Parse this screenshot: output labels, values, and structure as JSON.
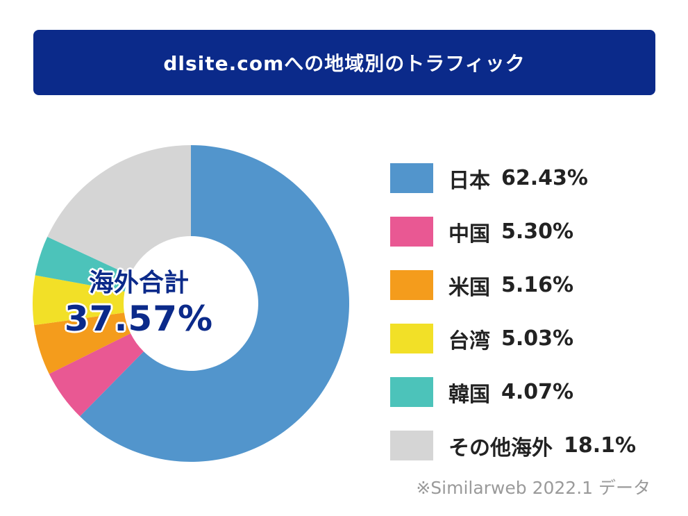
{
  "title": "dlsite.comへの地域別のトラフィック",
  "colors": {
    "title_bar": "#0b2a8a",
    "center_text": "#0b2a8a"
  },
  "center": {
    "label": "海外合計",
    "value": "37.57%"
  },
  "source_note": "※Similarweb 2022.1 データ",
  "chart_data": {
    "type": "pie",
    "donut": true,
    "title": "dlsite.comへの地域別のトラフィック",
    "legend_position": "right",
    "series": [
      {
        "name": "日本",
        "value": 62.43,
        "label": "62.43%",
        "color": "#5295cc"
      },
      {
        "name": "中国",
        "value": 5.3,
        "label": "5.30%",
        "color": "#e95893"
      },
      {
        "name": "米国",
        "value": 5.16,
        "label": "5.16%",
        "color": "#f49c1c"
      },
      {
        "name": "台湾",
        "value": 5.03,
        "label": "5.03%",
        "color": "#f2e027"
      },
      {
        "name": "韓国",
        "value": 4.07,
        "label": "4.07%",
        "color": "#4cc3ba"
      },
      {
        "name": "その他海外",
        "value": 18.1,
        "label": "18.1%",
        "color": "#d5d5d5"
      }
    ]
  }
}
